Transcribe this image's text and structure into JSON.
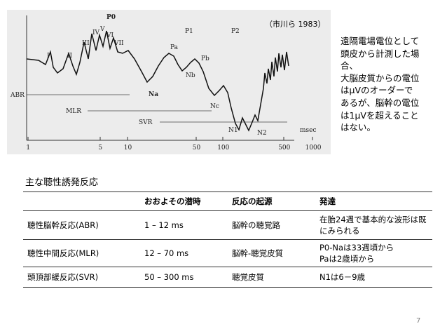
{
  "figure": {
    "peak_labels": {
      "P0": "P0",
      "I": "I",
      "II": "II",
      "III": "III",
      "IV": "IV",
      "V": "V",
      "VI": "VI",
      "VII": "VII",
      "Na": "Na",
      "Pa": "Pa",
      "P1": "P1",
      "Nb": "Nb",
      "Pb": "Pb",
      "Nc": "Nc",
      "P2": "P2",
      "N1": "N1",
      "N2": "N2"
    },
    "section_labels": {
      "abr": "ABR",
      "mlr": "MLR",
      "svr": "SVR"
    },
    "axis_unit": "msec",
    "axis_ticks": [
      "1",
      "5",
      "10",
      "50",
      "100",
      "500",
      "1000"
    ]
  },
  "citation": "（市川ら 1983）",
  "note_lines": [
    "遠隔電場電位として",
    "頭皮から計測した場",
    "合、",
    "大脳皮質からの電位",
    "はμVのオーダーで",
    "あるが、脳幹の電位",
    "は1μVを超えること",
    "はない。"
  ],
  "section_title": "主な聴性誘発反応",
  "table": {
    "headers": [
      "",
      "おおよその潜時",
      "反応の起源",
      "発達"
    ],
    "rows": [
      [
        "聴性脳幹反応(ABR)",
        "1 – 12 ms",
        "脳幹の聴覚路",
        "在胎24週で基本的な波形は既にみられる"
      ],
      [
        "聴性中間反応(MLR)",
        "12 – 70 ms",
        "脳幹-聴覚皮質",
        "P0-Naは33週頃から\nPaは2歳頃から"
      ],
      [
        "頭頂部緩反応(SVR)",
        "50 – 300 ms",
        "聴覚皮質",
        "N1は6－9歳"
      ]
    ]
  },
  "page_number": "7"
}
